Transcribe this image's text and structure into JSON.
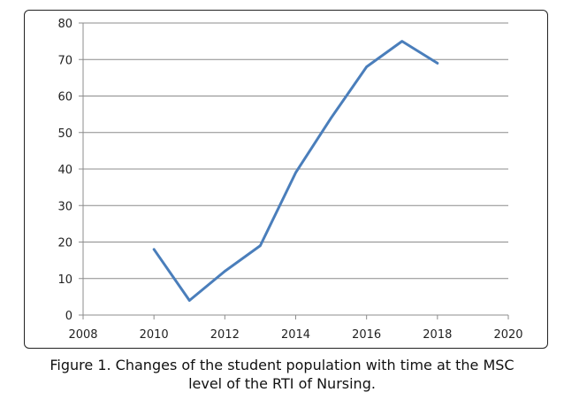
{
  "caption": {
    "line1": "Figure 1. Changes of the student population with time at the MSC",
    "line2": "level of the RTI of Nursing."
  },
  "chart_data": {
    "type": "line",
    "title": "",
    "xlabel": "",
    "ylabel": "",
    "xlim": [
      2008,
      2020
    ],
    "ylim": [
      0,
      80
    ],
    "x_ticks": [
      2008,
      2010,
      2012,
      2014,
      2016,
      2018,
      2020
    ],
    "y_ticks": [
      0,
      10,
      20,
      30,
      40,
      50,
      60,
      70,
      80
    ],
    "grid": true,
    "legend": "none",
    "series": [
      {
        "color": "#4a7ebb",
        "x": [
          2010,
          2011,
          2012,
          2013,
          2014,
          2015,
          2016,
          2017,
          2018
        ],
        "y": [
          18,
          4,
          12,
          19,
          39,
          54,
          68,
          75,
          69
        ]
      }
    ]
  }
}
